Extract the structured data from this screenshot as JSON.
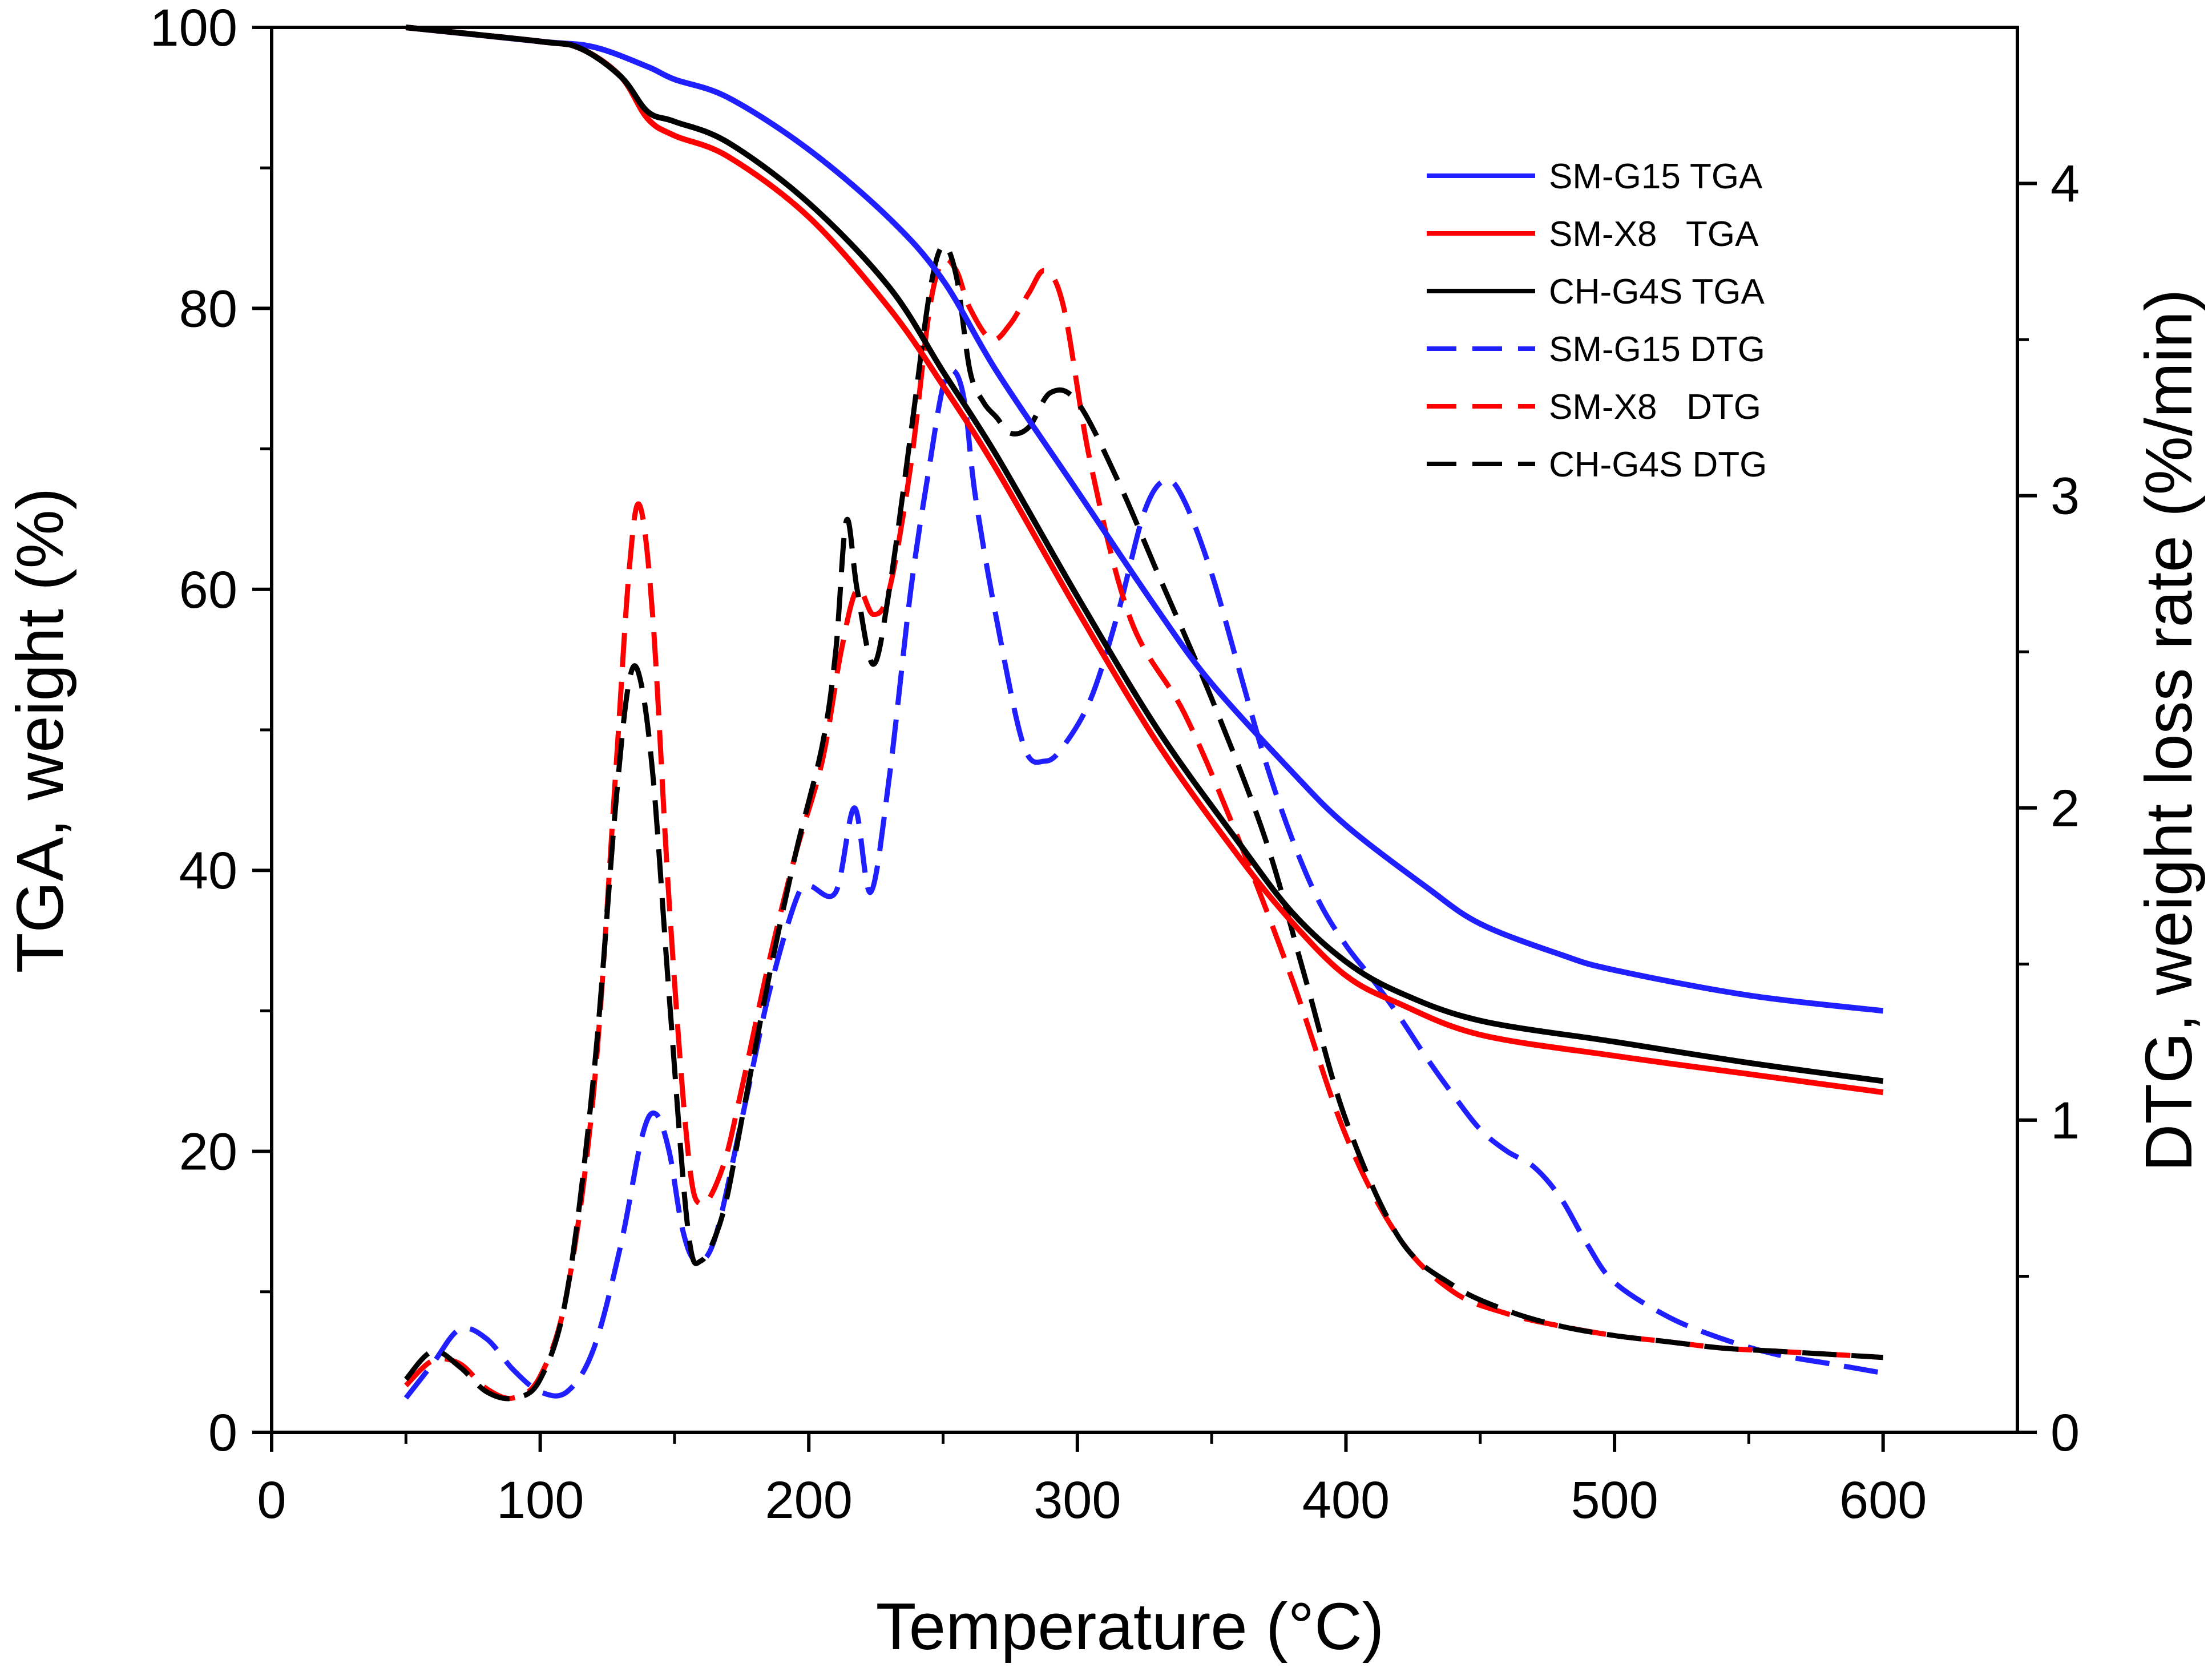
{
  "chart_data": {
    "type": "line",
    "title": "",
    "xlabel": "Temperature (°C)",
    "ylabel": "TGA, weight (%)",
    "y2label": "DTG, weight loss rate (%/min)",
    "xlim": [
      0,
      650
    ],
    "ylim": [
      0,
      100
    ],
    "y2lim": [
      0,
      4.5
    ],
    "x_ticks": [
      "0",
      "100",
      "200",
      "300",
      "400",
      "500",
      "600"
    ],
    "y_ticks": [
      "0",
      "20",
      "40",
      "60",
      "80",
      "100"
    ],
    "y2_ticks": [
      "0",
      "1",
      "2",
      "3",
      "4"
    ],
    "grid": false,
    "legend_position": "top-right",
    "colors": {
      "blue": "#1f1fff",
      "red": "#ff0000",
      "black": "#000000"
    },
    "series": [
      {
        "name": "SM-G15 TGA",
        "axis": "left",
        "color": "#1f1fff",
        "dash": "solid",
        "x": [
          50,
          100,
          120,
          140,
          150,
          170,
          200,
          230,
          250,
          270,
          300,
          330,
          350,
          380,
          400,
          430,
          450,
          480,
          500,
          550,
          600
        ],
        "y": [
          100,
          99,
          98.6,
          97.2,
          96.3,
          95,
          91.3,
          86.4,
          82,
          75.5,
          67,
          58.5,
          53.3,
          47,
          43.2,
          38.8,
          36.2,
          34,
          32.9,
          31.1,
          30
        ]
      },
      {
        "name": "SM-X8   TGA",
        "axis": "left",
        "color": "#ff0000",
        "dash": "solid",
        "x": [
          50,
          100,
          115,
          130,
          140,
          150,
          170,
          200,
          230,
          250,
          270,
          300,
          330,
          360,
          380,
          400,
          420,
          450,
          500,
          550,
          600
        ],
        "y": [
          100,
          99,
          98.5,
          96.5,
          93.5,
          92.3,
          90.8,
          86.5,
          80,
          74.5,
          68.5,
          58.5,
          49,
          41,
          36.3,
          32.5,
          30.5,
          28.3,
          26.8,
          25.5,
          24.2
        ]
      },
      {
        "name": "CH-G4S TGA",
        "axis": "left",
        "color": "#000000",
        "dash": "solid",
        "x": [
          50,
          100,
          115,
          130,
          140,
          150,
          170,
          200,
          230,
          250,
          270,
          300,
          330,
          360,
          380,
          400,
          420,
          450,
          500,
          550,
          600
        ],
        "y": [
          100,
          99,
          98.5,
          96.5,
          94,
          93.3,
          91.8,
          87.5,
          81.5,
          75.5,
          69.5,
          59.5,
          50,
          42,
          37,
          33.5,
          31.3,
          29.3,
          27.8,
          26.3,
          25
        ]
      },
      {
        "name": "SM-G15 DTG",
        "axis": "right",
        "color": "#1f1fff",
        "dash": "dashed",
        "x": [
          50,
          60,
          70,
          80,
          90,
          100,
          110,
          120,
          130,
          138,
          143,
          148,
          153,
          158,
          165,
          175,
          185,
          195,
          200,
          210,
          217,
          223,
          230,
          238,
          245,
          250,
          254,
          258,
          262,
          270,
          280,
          288,
          295,
          305,
          315,
          325,
          333,
          340,
          350,
          360,
          370,
          380,
          390,
          400,
          410,
          420,
          430,
          440,
          450,
          460,
          470,
          480,
          490,
          500,
          520,
          540,
          560,
          580,
          600
        ],
        "y": [
          0.11,
          0.22,
          0.33,
          0.3,
          0.2,
          0.13,
          0.13,
          0.27,
          0.6,
          0.95,
          1.02,
          0.9,
          0.65,
          0.55,
          0.62,
          1.0,
          1.4,
          1.7,
          1.75,
          1.73,
          2.0,
          1.73,
          2.1,
          2.7,
          3.1,
          3.35,
          3.4,
          3.3,
          3.0,
          2.6,
          2.2,
          2.15,
          2.2,
          2.35,
          2.62,
          2.95,
          3.05,
          2.98,
          2.75,
          2.45,
          2.15,
          1.9,
          1.7,
          1.56,
          1.45,
          1.33,
          1.2,
          1.08,
          0.97,
          0.9,
          0.85,
          0.75,
          0.6,
          0.48,
          0.37,
          0.3,
          0.25,
          0.22,
          0.19
        ]
      },
      {
        "name": "SM-X8   DTG",
        "axis": "right",
        "color": "#ff0000",
        "dash": "dashed",
        "x": [
          50,
          60,
          70,
          80,
          90,
          100,
          110,
          120,
          128,
          133,
          137,
          142,
          148,
          155,
          160,
          168,
          175,
          185,
          195,
          205,
          212,
          218,
          224,
          230,
          238,
          245,
          250,
          255,
          260,
          268,
          275,
          282,
          288,
          295,
          305,
          320,
          340,
          360,
          380,
          400,
          420,
          440,
          460,
          480,
          500,
          520,
          540,
          560,
          580,
          600
        ],
        "y": [
          0.15,
          0.23,
          0.22,
          0.14,
          0.11,
          0.18,
          0.45,
          1.1,
          2.1,
          2.75,
          2.97,
          2.6,
          1.7,
          0.9,
          0.73,
          0.85,
          1.1,
          1.5,
          1.85,
          2.15,
          2.5,
          2.7,
          2.62,
          2.7,
          3.1,
          3.6,
          3.75,
          3.72,
          3.6,
          3.5,
          3.55,
          3.65,
          3.72,
          3.6,
          3.1,
          2.6,
          2.3,
          1.9,
          1.45,
          0.95,
          0.62,
          0.45,
          0.38,
          0.34,
          0.31,
          0.29,
          0.27,
          0.26,
          0.25,
          0.24
        ]
      },
      {
        "name": "CH-G4S DTG",
        "axis": "right",
        "color": "#000000",
        "dash": "dashed",
        "x": [
          50,
          60,
          70,
          80,
          90,
          100,
          110,
          120,
          128,
          133,
          137,
          142,
          148,
          155,
          160,
          168,
          175,
          185,
          195,
          205,
          210,
          214,
          218,
          224,
          230,
          238,
          245,
          250,
          255,
          260,
          265,
          270,
          275,
          282,
          290,
          300,
          315,
          330,
          350,
          370,
          385,
          400,
          420,
          440,
          460,
          480,
          500,
          520,
          540,
          560,
          580,
          600
        ],
        "y": [
          0.17,
          0.26,
          0.21,
          0.13,
          0.11,
          0.17,
          0.45,
          1.15,
          2.0,
          2.4,
          2.42,
          2.1,
          1.4,
          0.65,
          0.55,
          0.7,
          1.0,
          1.45,
          1.85,
          2.2,
          2.5,
          2.92,
          2.7,
          2.46,
          2.7,
          3.2,
          3.65,
          3.8,
          3.7,
          3.4,
          3.3,
          3.25,
          3.2,
          3.22,
          3.33,
          3.3,
          3.05,
          2.75,
          2.35,
          1.9,
          1.45,
          1.0,
          0.62,
          0.47,
          0.39,
          0.34,
          0.31,
          0.29,
          0.27,
          0.26,
          0.25,
          0.24
        ]
      }
    ]
  }
}
